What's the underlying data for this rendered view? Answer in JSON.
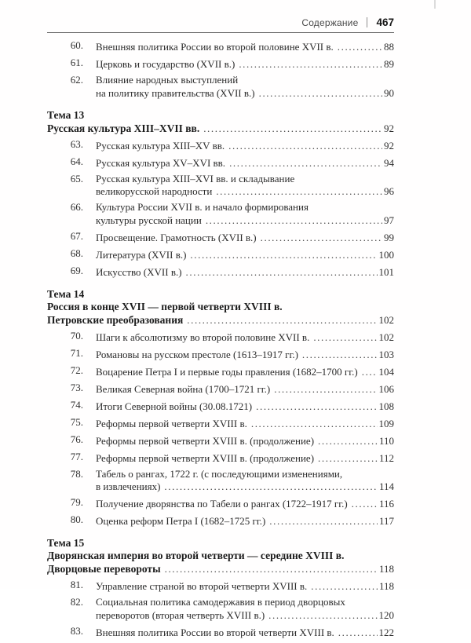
{
  "header": {
    "section_label": "Содержание",
    "page_number": "467"
  },
  "toc": [
    {
      "kind": "entry",
      "num": "60.",
      "lines": [
        "Внешняя политика России во второй половине XVII в."
      ],
      "page": "88"
    },
    {
      "kind": "entry",
      "num": "61.",
      "lines": [
        "Церковь и государство (XVII в.)"
      ],
      "page": "89"
    },
    {
      "kind": "entry",
      "num": "62.",
      "lines": [
        "Влияние народных выступлений",
        "на политику правительства (XVII в.)"
      ],
      "page": "90"
    },
    {
      "kind": "theme",
      "label": "Тема 13",
      "title_lines": [
        "Русская культура XIII–XVII вв."
      ],
      "page": "92"
    },
    {
      "kind": "entry",
      "num": "63.",
      "lines": [
        "Русская культура XIII–XV вв."
      ],
      "page": "92"
    },
    {
      "kind": "entry",
      "num": "64.",
      "lines": [
        "Русская культура XV–XVI вв."
      ],
      "page": "94"
    },
    {
      "kind": "entry",
      "num": "65.",
      "lines": [
        "Русская культура XIII–XVI вв. и складывание",
        "великорусской народности"
      ],
      "page": "96"
    },
    {
      "kind": "entry",
      "num": "66.",
      "lines": [
        "Культура России XVII в. и начало формирования",
        "культуры русской нации"
      ],
      "page": "97"
    },
    {
      "kind": "entry",
      "num": "67.",
      "lines": [
        "Просвещение. Грамотность (XVII в.)"
      ],
      "page": "99"
    },
    {
      "kind": "entry",
      "num": "68.",
      "lines": [
        "Литература (XVII в.)"
      ],
      "page": "100"
    },
    {
      "kind": "entry",
      "num": "69.",
      "lines": [
        "Искусство (XVII в.)"
      ],
      "page": "101"
    },
    {
      "kind": "theme",
      "label": "Тема 14",
      "title_lines": [
        "Россия в конце XVII — первой четверти XVIII в.",
        "Петровские преобразования"
      ],
      "page": "102"
    },
    {
      "kind": "entry",
      "num": "70.",
      "lines": [
        "Шаги к абсолютизму во второй половине XVII в."
      ],
      "page": "102"
    },
    {
      "kind": "entry",
      "num": "71.",
      "lines": [
        "Романовы на русском престоле (1613–1917 гг.)"
      ],
      "page": "103"
    },
    {
      "kind": "entry",
      "num": "72.",
      "lines": [
        "Воцарение Петра I и первые годы правления (1682–1700 гг.)"
      ],
      "page": "104"
    },
    {
      "kind": "entry",
      "num": "73.",
      "lines": [
        "Великая Северная война (1700–1721 гг.)"
      ],
      "page": "106"
    },
    {
      "kind": "entry",
      "num": "74.",
      "lines": [
        "Итоги Северной войны (30.08.1721)"
      ],
      "page": "108"
    },
    {
      "kind": "entry",
      "num": "75.",
      "lines": [
        "Реформы первой четверти XVIII в."
      ],
      "page": "109"
    },
    {
      "kind": "entry",
      "num": "76.",
      "lines": [
        "Реформы первой четверти XVIII в. (продолжение)"
      ],
      "page": "110"
    },
    {
      "kind": "entry",
      "num": "77.",
      "lines": [
        "Реформы первой четверти XVIII в. (продолжение)"
      ],
      "page": "112"
    },
    {
      "kind": "entry",
      "num": "78.",
      "lines": [
        "Табель о рангах, 1722 г. (с последующими изменениями,",
        "в извлечениях)"
      ],
      "page": "114"
    },
    {
      "kind": "entry",
      "num": "79.",
      "lines": [
        "Получение дворянства по Табели о рангах (1722–1917 гг.)"
      ],
      "page": "116"
    },
    {
      "kind": "entry",
      "num": "80.",
      "lines": [
        "Оценка реформ Петра I (1682–1725 гг.)"
      ],
      "page": "117"
    },
    {
      "kind": "theme",
      "label": "Тема 15",
      "title_lines": [
        "Дворянская империя во второй четверти — середине XVIII в.",
        "Дворцовые перевороты"
      ],
      "page": "118"
    },
    {
      "kind": "entry",
      "num": "81.",
      "lines": [
        "Управление страной во второй четверти XVIII в."
      ],
      "page": "118"
    },
    {
      "kind": "entry",
      "num": "82.",
      "lines": [
        "Социальная политика самодержавия в период дворцовых",
        "переворотов (вторая четверть XVIII в.)"
      ],
      "page": "120"
    },
    {
      "kind": "entry",
      "num": "83.",
      "lines": [
        "Внешняя политика России во второй четверти XVIII в."
      ],
      "page": "122"
    }
  ]
}
